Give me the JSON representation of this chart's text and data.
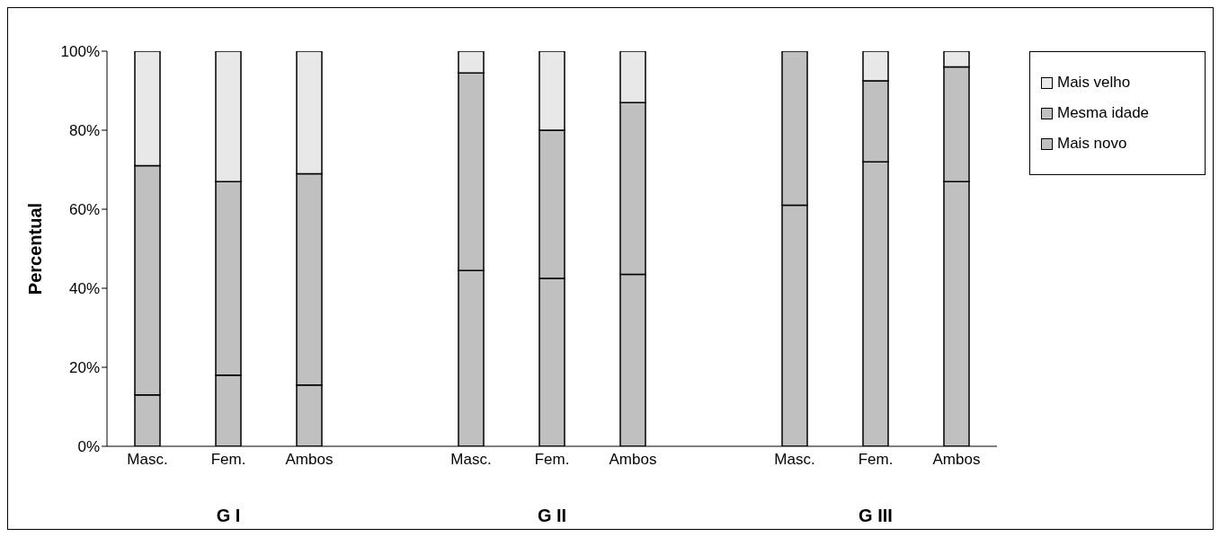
{
  "chart_data": {
    "type": "bar",
    "stacked": true,
    "ylabel": "Percentual",
    "categories": [
      "Masc.",
      "Fem.",
      "Ambos",
      null,
      "Masc.",
      "Fem.",
      "Ambos",
      null,
      "Masc.",
      "Fem.",
      "Ambos"
    ],
    "series": [
      {
        "name": "Mais novo",
        "color": "#c0c0c0",
        "values": [
          13,
          18,
          15.5,
          null,
          44.5,
          42.5,
          43.5,
          null,
          61,
          72,
          67
        ]
      },
      {
        "name": "Mesma idade",
        "color": "#c0c0c0",
        "values": [
          58,
          49,
          53.5,
          null,
          50,
          37.5,
          43.5,
          null,
          39,
          20.5,
          29
        ]
      },
      {
        "name": "Mais velho",
        "color": "#e8e8e8",
        "values": [
          29,
          33,
          31,
          null,
          5.5,
          20,
          13,
          null,
          0,
          7.5,
          4
        ]
      }
    ],
    "ylim": [
      0,
      100
    ],
    "yticks": [
      {
        "value": 0,
        "label": "0%"
      },
      {
        "value": 20,
        "label": "20%"
      },
      {
        "value": 40,
        "label": "40%"
      },
      {
        "value": 60,
        "label": "60%"
      },
      {
        "value": 80,
        "label": "80%"
      },
      {
        "value": 100,
        "label": "100%"
      }
    ],
    "annotations": [
      "G I",
      "G II",
      "G III"
    ],
    "legend": "right"
  }
}
